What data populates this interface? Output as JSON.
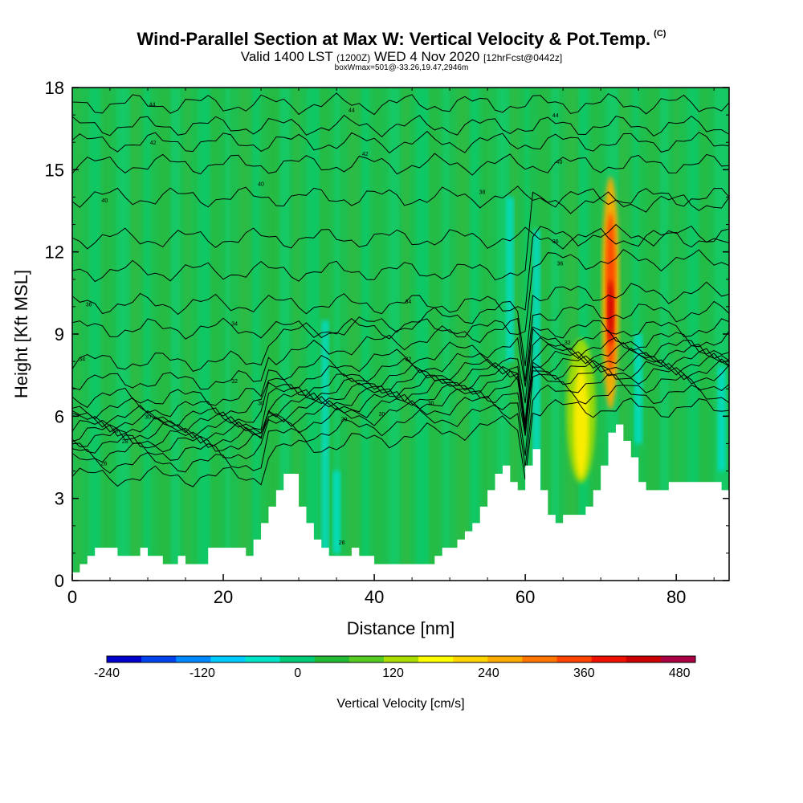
{
  "chart_data": {
    "type": "heatmap",
    "title": "Wind-Parallel Section at Max W: Vertical Velocity & Pot.Temp.",
    "title_mark": "(C)",
    "subtitle_main": "Valid 1400 LST",
    "subtitle_utc": "(1200Z)",
    "subtitle_date": "WED 4 Nov 2020",
    "subtitle_run": "[12hrFcst@0442z]",
    "subtitle2": "boxWmax=501@-33.26,19.47,2946m",
    "xlabel": "Distance [nm]",
    "ylabel": "Height [Kft MSL]",
    "xlim": [
      0,
      87
    ],
    "ylim": [
      0,
      18
    ],
    "xticks": [
      0,
      20,
      40,
      60,
      80
    ],
    "yticks": [
      0,
      3,
      6,
      9,
      12,
      15,
      18
    ],
    "colorbar": {
      "label": "Vertical Velocity [cm/s]",
      "min": -240,
      "max": 500,
      "ticks": [
        -240,
        -120,
        0,
        120,
        240,
        360,
        480
      ],
      "colors": [
        "#0000cc",
        "#0044ee",
        "#0088ff",
        "#00ccff",
        "#00e5c8",
        "#00cc77",
        "#22bb33",
        "#55cc22",
        "#aadd00",
        "#ffff00",
        "#ffd500",
        "#ffaa00",
        "#ff7700",
        "#ff4400",
        "#ee1100",
        "#cc0000",
        "#aa0044"
      ]
    },
    "background_w_color": "#1fbf4f",
    "terrain": {
      "x": [
        0,
        1,
        2,
        3,
        4,
        5,
        6,
        7,
        8,
        9,
        10,
        11,
        12,
        13,
        14,
        15,
        16,
        17,
        18,
        19,
        20,
        21,
        22,
        23,
        24,
        25,
        26,
        27,
        28,
        29,
        30,
        31,
        32,
        33,
        34,
        35,
        36,
        37,
        38,
        39,
        40,
        41,
        42,
        43,
        44,
        45,
        46,
        47,
        48,
        49,
        50,
        51,
        52,
        53,
        54,
        55,
        56,
        57,
        58,
        59,
        60,
        61,
        62,
        63,
        64,
        65,
        66,
        67,
        68,
        69,
        70,
        71,
        72,
        73,
        74,
        75,
        76,
        77,
        78,
        79,
        80,
        81,
        82,
        83,
        84,
        85,
        86,
        87
      ],
      "height_kft": [
        0.3,
        0.6,
        0.9,
        1.2,
        1.2,
        1.2,
        0.9,
        0.9,
        0.9,
        1.2,
        0.9,
        0.9,
        0.6,
        0.6,
        0.9,
        0.6,
        0.6,
        0.6,
        1.2,
        1.2,
        1.2,
        1.2,
        1.2,
        0.9,
        1.5,
        2.1,
        2.7,
        3.3,
        3.9,
        3.9,
        2.7,
        2.1,
        1.5,
        1.2,
        0.9,
        0.9,
        0.9,
        1.2,
        0.9,
        0.9,
        0.6,
        0.6,
        0.6,
        0.6,
        0.6,
        0.6,
        0.6,
        0.6,
        0.9,
        1.2,
        1.2,
        1.5,
        1.8,
        2.1,
        2.7,
        3.3,
        3.9,
        4.2,
        3.6,
        3.3,
        4.2,
        4.8,
        3.3,
        2.4,
        2.1,
        2.4,
        2.4,
        2.4,
        2.7,
        3.3,
        4.2,
        5.4,
        5.7,
        5.1,
        4.5,
        3.6,
        3.3,
        3.3,
        3.3,
        3.6,
        3.6,
        3.6,
        3.6,
        3.6,
        3.6,
        3.6,
        3.3,
        3.3
      ]
    },
    "updraft_cores": [
      {
        "x": 71.3,
        "z": 10.0,
        "w": 500
      },
      {
        "x": 67.4,
        "z": 6.0,
        "w": 200
      }
    ],
    "theta_contour_labels": [
      {
        "x": 10.6,
        "z": 17.4,
        "text": "44"
      },
      {
        "x": 37.0,
        "z": 17.2,
        "text": "44"
      },
      {
        "x": 64.0,
        "z": 17.0,
        "text": "44"
      },
      {
        "x": 10.7,
        "z": 16.0,
        "text": "42"
      },
      {
        "x": 38.8,
        "z": 15.6,
        "text": "42"
      },
      {
        "x": 64.5,
        "z": 15.3,
        "text": "40"
      },
      {
        "x": 25.0,
        "z": 14.5,
        "text": "40"
      },
      {
        "x": 4.3,
        "z": 13.9,
        "text": "40"
      },
      {
        "x": 54.3,
        "z": 14.2,
        "text": "38"
      },
      {
        "x": 64.0,
        "z": 12.4,
        "text": "36"
      },
      {
        "x": 64.6,
        "z": 11.6,
        "text": "36"
      },
      {
        "x": 2.2,
        "z": 10.1,
        "text": "36"
      },
      {
        "x": 44.5,
        "z": 10.2,
        "text": "34"
      },
      {
        "x": 21.5,
        "z": 9.4,
        "text": "34"
      },
      {
        "x": 1.3,
        "z": 8.1,
        "text": "34"
      },
      {
        "x": 44.5,
        "z": 8.1,
        "text": "32"
      },
      {
        "x": 65.6,
        "z": 8.7,
        "text": "32"
      },
      {
        "x": 21.5,
        "z": 7.3,
        "text": "32"
      },
      {
        "x": 25.0,
        "z": 6.5,
        "text": "30"
      },
      {
        "x": 47.5,
        "z": 6.5,
        "text": "30"
      },
      {
        "x": 10.0,
        "z": 6.0,
        "text": "30"
      },
      {
        "x": 41.0,
        "z": 6.1,
        "text": "30"
      },
      {
        "x": 36.0,
        "z": 5.9,
        "text": "29"
      },
      {
        "x": 5.7,
        "z": 5.5,
        "text": "28"
      },
      {
        "x": 7.0,
        "z": 5.1,
        "text": "28"
      },
      {
        "x": 4.2,
        "z": 4.3,
        "text": "26"
      },
      {
        "x": 35.7,
        "z": 1.4,
        "text": "26"
      }
    ]
  }
}
